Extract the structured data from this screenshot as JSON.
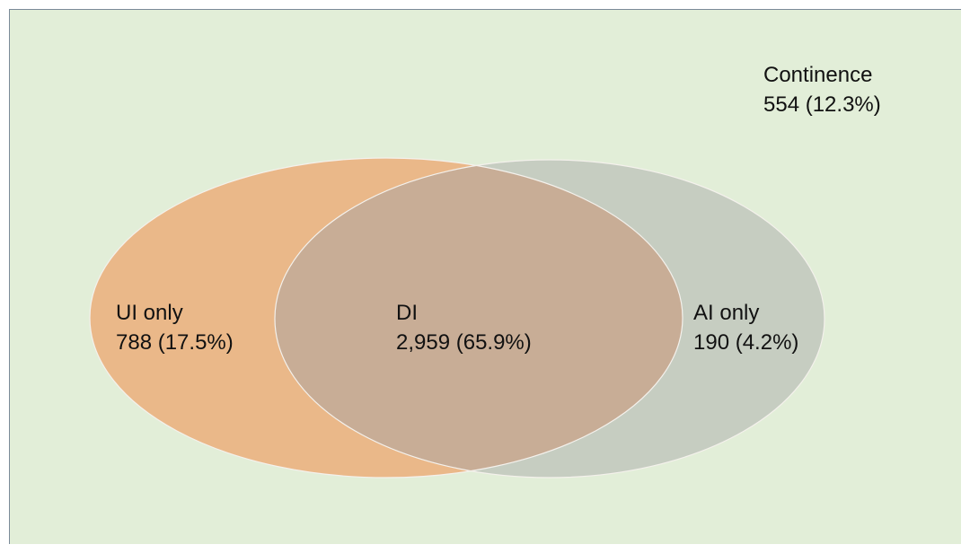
{
  "regions": {
    "continence": {
      "name": "Continence",
      "value": "554 (12.3%)",
      "count": 554,
      "percent": 12.3
    },
    "ui_only": {
      "name": "UI only",
      "value": "788 (17.5%)",
      "count": 788,
      "percent": 17.5
    },
    "di": {
      "name": "DI",
      "value": "2,959 (65.9%)",
      "count": 2959,
      "percent": 65.9
    },
    "ai_only": {
      "name": "AI only",
      "value": "190 (4.2%)",
      "count": 190,
      "percent": 4.2
    }
  },
  "colors": {
    "background": "#e2eed8",
    "ui_set": "#eab889",
    "ai_set": "#c6cdc1",
    "overlap": "#c8ad96",
    "outline": "#f4f1ec"
  }
}
